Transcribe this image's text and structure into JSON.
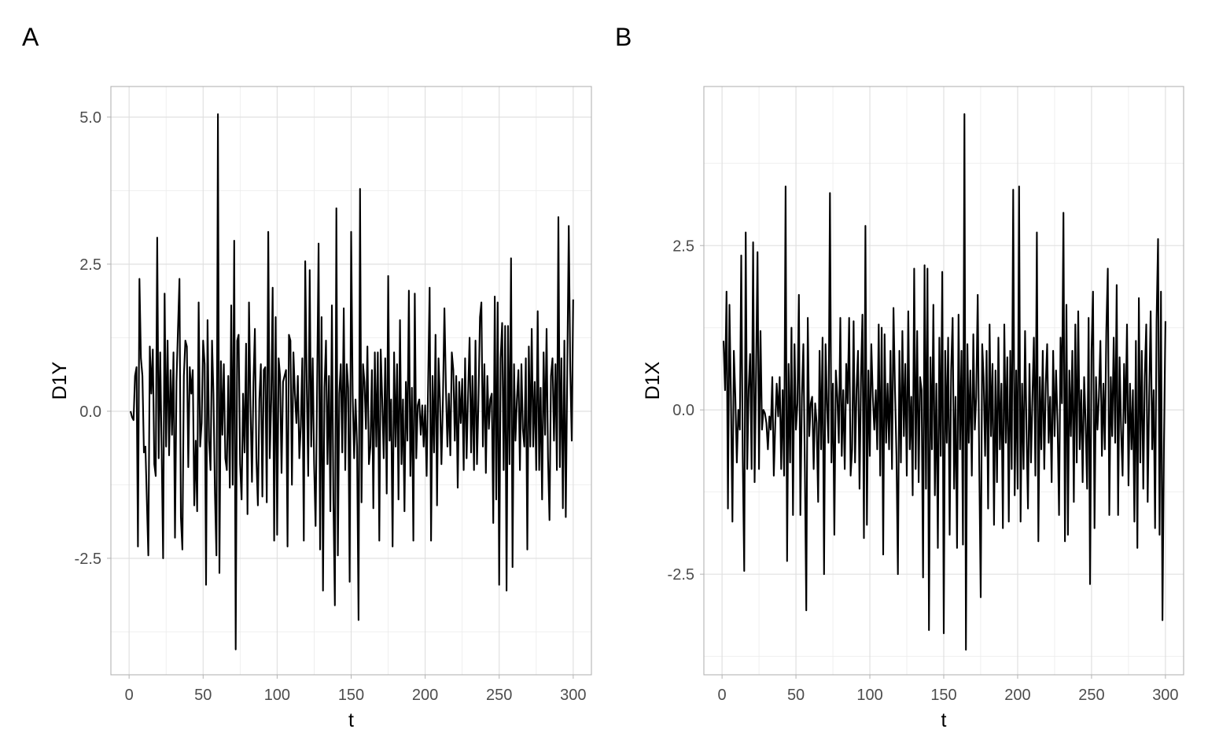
{
  "chart_data": [
    {
      "type": "line",
      "tag": "A",
      "xlabel": "t",
      "ylabel": "D1Y",
      "xlim": [
        -12.3,
        312.3
      ],
      "ylim": [
        -4.48,
        5.52
      ],
      "xticks": [
        0,
        50,
        100,
        150,
        200,
        250,
        300
      ],
      "xtick_labels": [
        "0",
        "50",
        "100",
        "150",
        "200",
        "250",
        "300"
      ],
      "yticks": [
        -2.5,
        0,
        2.5,
        5
      ],
      "ytick_labels": [
        "-2.5",
        "0.0",
        "2.5",
        "5.0"
      ],
      "yminor": [
        -3.75,
        -1.25,
        1.25,
        3.75
      ],
      "grid": true,
      "line_color": "#000000",
      "x_start": 1,
      "values": [
        0,
        -0.1,
        -0.15,
        0.6,
        0.75,
        -2.3,
        2.25,
        0.9,
        0.6,
        -0.7,
        -0.6,
        -1.5,
        -2.45,
        1.1,
        0.3,
        1.05,
        -0.9,
        -1.1,
        2.95,
        -0.8,
        1.0,
        -0.7,
        -2.5,
        2.0,
        -0.6,
        1.2,
        -0.75,
        0.7,
        -0.4,
        1.0,
        -2.15,
        0.5,
        1.4,
        2.25,
        -1.8,
        -2.35,
        0.6,
        1.2,
        1.1,
        -0.95,
        0.75,
        0.3,
        0.7,
        -1.6,
        -0.5,
        -1.7,
        1.85,
        -0.6,
        -0.2,
        1.2,
        0.8,
        -2.95,
        1.55,
        -0.5,
        -1.0,
        1.2,
        0.3,
        -1.4,
        -2.45,
        5.05,
        -2.75,
        0.85,
        -0.4,
        0.8,
        -0.8,
        -1.0,
        0.6,
        -1.3,
        1.8,
        -1.25,
        2.9,
        -4.05,
        1.2,
        1.3,
        -0.9,
        -1.5,
        0.3,
        -0.7,
        1.15,
        -1.75,
        1.85,
        0.1,
        -1.2,
        0.5,
        1.4,
        -0.8,
        -1.6,
        0.2,
        0.8,
        -1.45,
        0.7,
        0.75,
        -1.55,
        3.05,
        -0.8,
        0.2,
        2.1,
        -2.2,
        1.6,
        -2.1,
        0.9,
        0.6,
        -1.05,
        0.5,
        0.6,
        0.7,
        -2.3,
        1.3,
        1.2,
        -1.25,
        1.0,
        0.3,
        -0.2,
        0.6,
        -0.8,
        -0.25,
        0.9,
        -2.2,
        2.55,
        0.5,
        -1.1,
        2.4,
        -0.6,
        0.9,
        -0.9,
        -1.95,
        0.4,
        2.85,
        -2.35,
        1.6,
        -3.05,
        0.4,
        1.2,
        -0.9,
        0.6,
        -1.7,
        1.8,
        -1.5,
        -3.3,
        3.45,
        -2.45,
        0.3,
        0.8,
        -0.7,
        1.75,
        -1.0,
        0.8,
        0.4,
        -2.9,
        3.05,
        0.3,
        -0.8,
        0.2,
        -0.6,
        -3.55,
        3.78,
        -1.55,
        0.8,
        0.5,
        -0.3,
        1.1,
        -0.9,
        -0.6,
        0.7,
        -1.65,
        1.0,
        -0.6,
        1.0,
        -2.2,
        1.05,
        0.2,
        -0.8,
        0.9,
        -1.4,
        2.3,
        -0.5,
        0.2,
        -2.3,
        1.0,
        -0.6,
        0.8,
        -1.5,
        1.55,
        -0.9,
        0.2,
        -1.7,
        0.5,
        -0.5,
        2.05,
        -1.1,
        0.4,
        -2.2,
        2.0,
        -0.8,
        0.1,
        0.2,
        -0.4,
        0.1,
        -0.6,
        0.1,
        -1.1,
        0.5,
        2.1,
        -2.2,
        0.6,
        -0.7,
        1.3,
        -1.6,
        0.9,
        0.2,
        -0.9,
        0.2,
        1.75,
        0.4,
        -0.6,
        0.3,
        -0.75,
        1.0,
        0.7,
        -0.5,
        0.6,
        -1.3,
        0.5,
        -0.2,
        0.55,
        -1.0,
        0.9,
        -0.8,
        0.3,
        1.25,
        -0.7,
        0.6,
        -1.0,
        1.2,
        -0.9,
        0.2,
        1.6,
        1.85,
        -0.6,
        0.8,
        -1.05,
        0.6,
        -0.3,
        0.2,
        0.3,
        -1.9,
        1.95,
        -1.5,
        1.85,
        -2.95,
        0.9,
        1.5,
        -1.0,
        1.45,
        -3.05,
        1.45,
        -0.9,
        2.6,
        -2.65,
        0.8,
        -0.5,
        0.2,
        0.7,
        -1.0,
        0.8,
        -0.3,
        -0.6,
        0.9,
        -2.35,
        1.1,
        -0.6,
        1.4,
        -0.6,
        0.5,
        -1.0,
        1.7,
        -1.0,
        0.4,
        -1.5,
        1.0,
        -0.4,
        1.4,
        -0.8,
        -1.85,
        0.6,
        0.9,
        -0.5,
        0.8,
        -1.0,
        3.3,
        -0.95,
        0.9,
        -1.65,
        1.2,
        -1.8,
        0.7,
        3.15,
        0.7,
        -0.5,
        1.9
      ]
    },
    {
      "type": "line",
      "tag": "B",
      "xlabel": "t",
      "ylabel": "D1X",
      "xlim": [
        -12.3,
        312.3
      ],
      "ylim": [
        -4.03,
        4.92
      ],
      "xticks": [
        0,
        50,
        100,
        150,
        200,
        250,
        300
      ],
      "xtick_labels": [
        "0",
        "50",
        "100",
        "150",
        "200",
        "250",
        "300"
      ],
      "yticks": [
        -2.5,
        0,
        2.5
      ],
      "ytick_labels": [
        "-2.5",
        "0.0",
        "2.5"
      ],
      "yminor": [
        -3.75,
        -1.25,
        1.25,
        3.75
      ],
      "grid": true,
      "line_color": "#000000",
      "x_start": 1,
      "values": [
        1.05,
        0.3,
        1.8,
        -1.5,
        1.6,
        0.2,
        -1.7,
        0.9,
        0.2,
        -0.8,
        0.0,
        -0.3,
        2.35,
        -0.7,
        -2.45,
        2.7,
        -0.9,
        0.3,
        0.85,
        -0.9,
        2.55,
        -1.1,
        0.5,
        2.4,
        -0.9,
        1.2,
        -0.3,
        0.0,
        -0.05,
        -0.2,
        -0.6,
        -0.1,
        -0.3,
        0.5,
        -1.0,
        -0.2,
        0.4,
        -0.1,
        0.5,
        -0.9,
        0.3,
        -1.0,
        3.4,
        -2.3,
        0.7,
        -0.8,
        1.25,
        -1.6,
        1.0,
        -0.3,
        0.1,
        1.75,
        -1.6,
        0.2,
        1.0,
        -0.9,
        -3.05,
        1.4,
        -0.4,
        0.1,
        0.2,
        -0.9,
        0.1,
        -0.2,
        -1.4,
        0.9,
        -0.6,
        1.1,
        -2.5,
        1.0,
        0.1,
        -0.5,
        3.3,
        -0.8,
        0.4,
        -1.9,
        0.6,
        0.2,
        -0.5,
        1.4,
        -0.7,
        0.3,
        -0.9,
        0.7,
        0.1,
        1.4,
        -1.0,
        -0.6,
        1.35,
        -0.8,
        0.3,
        0.9,
        -1.2,
        0.5,
        1.45,
        -1.95,
        2.8,
        -1.75,
        0.6,
        -0.7,
        1.0,
        0.2,
        -0.3,
        0.3,
        -0.6,
        1.3,
        -1.0,
        1.25,
        -2.2,
        1.15,
        -0.5,
        0.4,
        -0.6,
        0.9,
        -0.9,
        1.55,
        0.3,
        -0.7,
        -2.5,
        0.9,
        -0.8,
        1.2,
        -0.4,
        0.7,
        -1.0,
        1.5,
        -0.6,
        0.2,
        -1.3,
        2.15,
        -0.9,
        1.2,
        -1.1,
        0.5,
        0.3,
        -2.55,
        2.2,
        -1.2,
        2.15,
        -3.35,
        0.8,
        -0.6,
        1.6,
        -1.3,
        0.4,
        -2.1,
        1.1,
        -0.7,
        2.1,
        -3.4,
        0.9,
        -0.5,
        1.1,
        -1.9,
        0.6,
        1.4,
        -1.2,
        0.2,
        -2.1,
        1.45,
        -0.6,
        0.9,
        -2.05,
        4.5,
        -3.65,
        1.0,
        -0.5,
        0.6,
        -1.0,
        1.15,
        -0.3,
        0.2,
        1.75,
        -0.8,
        -2.85,
        1.0,
        0.5,
        -0.7,
        0.9,
        -1.5,
        1.3,
        -0.4,
        0.7,
        -1.75,
        0.6,
        -1.1,
        1.1,
        -0.6,
        0.4,
        -1.8,
        1.3,
        -0.5,
        0.8,
        -1.7,
        0.9,
        -0.9,
        3.35,
        -1.3,
        0.6,
        -1.2,
        3.4,
        -1.7,
        0.4,
        -0.9,
        1.2,
        -0.3,
        -1.5,
        0.7,
        -0.8,
        0.2,
        1.1,
        -1.0,
        2.7,
        -2.0,
        0.5,
        -0.6,
        0.9,
        -0.9,
        0.4,
        1.0,
        -0.5,
        0.2,
        -1.1,
        0.9,
        -0.4,
        0.6,
        -0.2,
        -1.6,
        1.1,
        0.1,
        3.0,
        -2.0,
        1.6,
        -1.9,
        0.6,
        -0.4,
        0.9,
        -1.4,
        1.3,
        -0.8,
        1.5,
        -0.6,
        0.3,
        -1.1,
        0.5,
        -0.2,
        -1.2,
        1.4,
        -2.65,
        0.9,
        1.8,
        -1.8,
        0.5,
        -0.3,
        0.2,
        1.05,
        -0.7,
        0.4,
        -0.6,
        1.2,
        2.15,
        -1.6,
        0.5,
        -0.4,
        1.1,
        -0.5,
        1.9,
        -1.6,
        0.8,
        -0.3,
        -1.0,
        0.7,
        -0.2,
        1.3,
        -1.15,
        0.4,
        -0.6,
        0.3,
        -1.7,
        1.05,
        -2.1,
        1.7,
        -0.8,
        0.9,
        -1.2,
        0.5,
        1.3,
        -1.4,
        0.2,
        1.5,
        -0.6,
        0.3,
        -1.8,
        1.35,
        2.6,
        -1.9,
        1.8,
        -3.2,
        -0.5,
        1.35
      ]
    }
  ]
}
